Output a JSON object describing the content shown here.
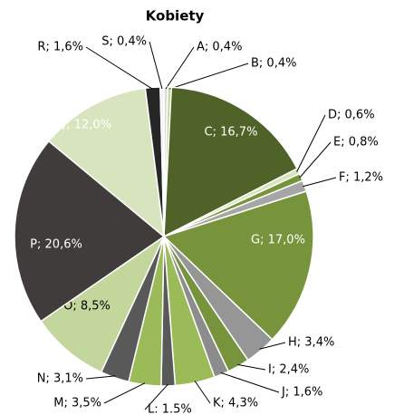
{
  "chart_data": {
    "type": "pie",
    "title": "Kobiety",
    "categories": [
      "A; 0,4%",
      "B; 0,4%",
      "C; 16,7%",
      "D; 0,6%",
      "E; 0,8%",
      "F; 1,2%",
      "G; 17,0%",
      "H; 3,4%",
      "I; 2,4%",
      "J; 1,6%",
      "K; 4,3%",
      "L: 1.5%",
      "M; 3,5%",
      "N; 3,1%",
      "O; 8,5%",
      "P; 20,6%",
      "Q; 12,0%",
      "R; 1,6%",
      "S; 0,4%"
    ],
    "values": [
      0.4,
      0.4,
      16.7,
      0.6,
      0.8,
      1.2,
      17.0,
      3.4,
      2.4,
      1.6,
      4.3,
      1.5,
      3.5,
      3.1,
      8.5,
      20.6,
      12.0,
      1.6,
      0.4
    ],
    "colors": [
      "#d9d9d9",
      "#c3d69b",
      "#4f6228",
      "#d7e4bd",
      "#77933c",
      "#a6a6a6",
      "#77933c",
      "#969696",
      "#77933c",
      "#8c8c8c",
      "#9bbb59",
      "#595959",
      "#9bbb59",
      "#595959",
      "#c3d69b",
      "#403c3c",
      "#d7e4bd",
      "#262626",
      "#f2f2f2"
    ]
  }
}
